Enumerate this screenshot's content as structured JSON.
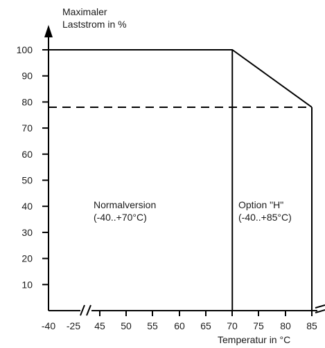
{
  "chart_data": {
    "type": "line",
    "ylabel_lines": [
      "Maximaler",
      "Laststrom in %"
    ],
    "xlabel": "Temperatur in °C",
    "y_ticks": [
      10,
      20,
      30,
      40,
      50,
      60,
      70,
      80,
      90,
      100
    ],
    "x_ticks": [
      "-40",
      "-25",
      "45",
      "50",
      "55",
      "60",
      "65",
      "70",
      "75",
      "80",
      "85"
    ],
    "axis_break": "between -25 and 45",
    "ylim": [
      0,
      100
    ],
    "series": [
      {
        "style": "solid",
        "points": [
          {
            "x": -40,
            "y": 100
          },
          {
            "x": 70,
            "y": 100
          },
          {
            "x": 85,
            "y": 78
          }
        ]
      },
      {
        "style": "dashed",
        "points": [
          {
            "x": -40,
            "y": 78
          },
          {
            "x": 85,
            "y": 78
          }
        ]
      }
    ],
    "vertical_lines": [
      {
        "x": 70,
        "y_from": 0,
        "y_to": 100
      },
      {
        "x": 85,
        "y_from": 0,
        "y_to": 78
      }
    ],
    "regions": [
      {
        "line1": "Normalversion",
        "line2": "(-40..+70°C)"
      },
      {
        "line1": "Option \"H\"",
        "line2": "(-40..+85°C)"
      }
    ]
  }
}
